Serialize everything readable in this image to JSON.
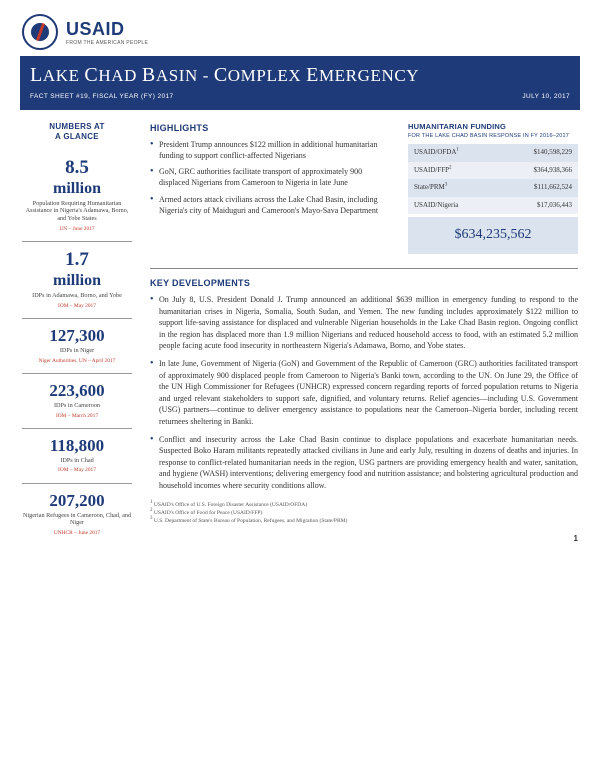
{
  "brand": {
    "name": "USAID",
    "tagline": "FROM THE AMERICAN PEOPLE"
  },
  "title": {
    "text": "LAKE CHAD BASIN - COMPLEX EMERGENCY",
    "left_sub": "FACT SHEET #19, FISCAL YEAR (FY) 2017",
    "right_sub": "JULY 10, 2017"
  },
  "glance": {
    "heading_l1": "NUMBERS AT",
    "heading_l2": "A GLANCE",
    "stats": [
      {
        "value": "8.5",
        "unit": "million",
        "label": "Population Requiring Humanitarian Assistance in Nigeria's Adamawa, Borno, and Yobe States",
        "src": "UN – June 2017"
      },
      {
        "value": "1.7",
        "unit": "million",
        "label": "IDPs in Adamawa, Borno, and Yobe",
        "src": "IOM – May 2017"
      },
      {
        "value": "127,300",
        "unit": "",
        "label": "IDPs in Niger",
        "src": "Niger Authorities, UN – April 2017"
      },
      {
        "value": "223,600",
        "unit": "",
        "label": "IDPs in Cameroon",
        "src": "IOM – March 2017"
      },
      {
        "value": "118,800",
        "unit": "",
        "label": "IDPs in Chad",
        "src": "IOM – May 2017"
      },
      {
        "value": "207,200",
        "unit": "",
        "label": "Nigerian Refugees in Cameroon, Chad, and Niger",
        "src": "UNHCR – June 2017"
      }
    ]
  },
  "highlights": {
    "heading": "HIGHLIGHTS",
    "items": [
      "President Trump announces $122 million in additional humanitarian funding to support conflict-affected Nigerians",
      "GoN, GRC authorities facilitate transport of approximately 900 displaced Nigerians from Cameroon to Nigeria in late June",
      "Armed actors attack civilians across the Lake Chad Basin, including Nigeria's city of Maiduguri and Cameroon's Mayo-Sava Department"
    ]
  },
  "funding": {
    "heading": "HUMANITARIAN FUNDING",
    "sub": "FOR THE LAKE CHAD BASIN RESPONSE IN FY 2016–2017",
    "rows": [
      {
        "label": "USAID/OFDA",
        "sup": "1",
        "amount": "$140,598,229"
      },
      {
        "label": "USAID/FFP",
        "sup": "2",
        "amount": "$364,938,366"
      },
      {
        "label": "State/PRM",
        "sup": "3",
        "amount": "$111,662,524"
      },
      {
        "label": "USAID/Nigeria",
        "sup": "",
        "amount": "$17,036,443"
      }
    ],
    "total": "$634,235,562"
  },
  "keydev": {
    "heading": "KEY DEVELOPMENTS",
    "items": [
      "On July 8, U.S. President Donald J. Trump announced an additional $639 million in emergency funding to respond to the humanitarian crises in Nigeria, Somalia, South Sudan, and Yemen.  The new funding includes approximately $122 million to support life-saving assistance for displaced and vulnerable Nigerian households in the Lake Chad Basin region.  Ongoing conflict in the region has displaced more than 1.9 million Nigerians and reduced household access to food, with an estimated 5.2 million people facing acute food insecurity in northeastern Nigeria's Adamawa, Borno, and Yobe states.",
      "In late June, Government of Nigeria (GoN) and Government of the Republic of Cameroon (GRC) authorities facilitated transport of approximately 900 displaced people from Cameroon to Nigeria's Banki town, according to the UN.  On June 29, the Office of the UN High Commissioner for Refugees (UNHCR) expressed concern regarding reports of forced population returns to Nigeria and urged relevant stakeholders to support safe, dignified, and voluntary returns.  Relief agencies—including U.S. Government (USG) partners—continue to deliver emergency assistance to populations near the Cameroon–Nigeria border, including recent returnees sheltering in Banki.",
      "Conflict and insecurity across the Lake Chad Basin continue to displace populations and exacerbate humanitarian needs.  Suspected Boko Haram militants repeatedly attacked civilians in June and early July, resulting in dozens of deaths and injuries.  In response to conflict-related humanitarian needs in the region, USG partners are providing emergency health and water, sanitation, and hygiene (WASH) interventions; delivering emergency food and nutrition assistance; and bolstering agricultural production and household incomes where security conditions allow."
    ]
  },
  "footnotes": [
    "USAID's Office of U.S. Foreign Disaster Assistance (USAID/OFDA)",
    "USAID's Office of Food for Peace (USAID/FFP)",
    "U.S. Department of State's Bureau of Population, Refugees, and Migration (State/PRM)"
  ],
  "pagenum": "1"
}
